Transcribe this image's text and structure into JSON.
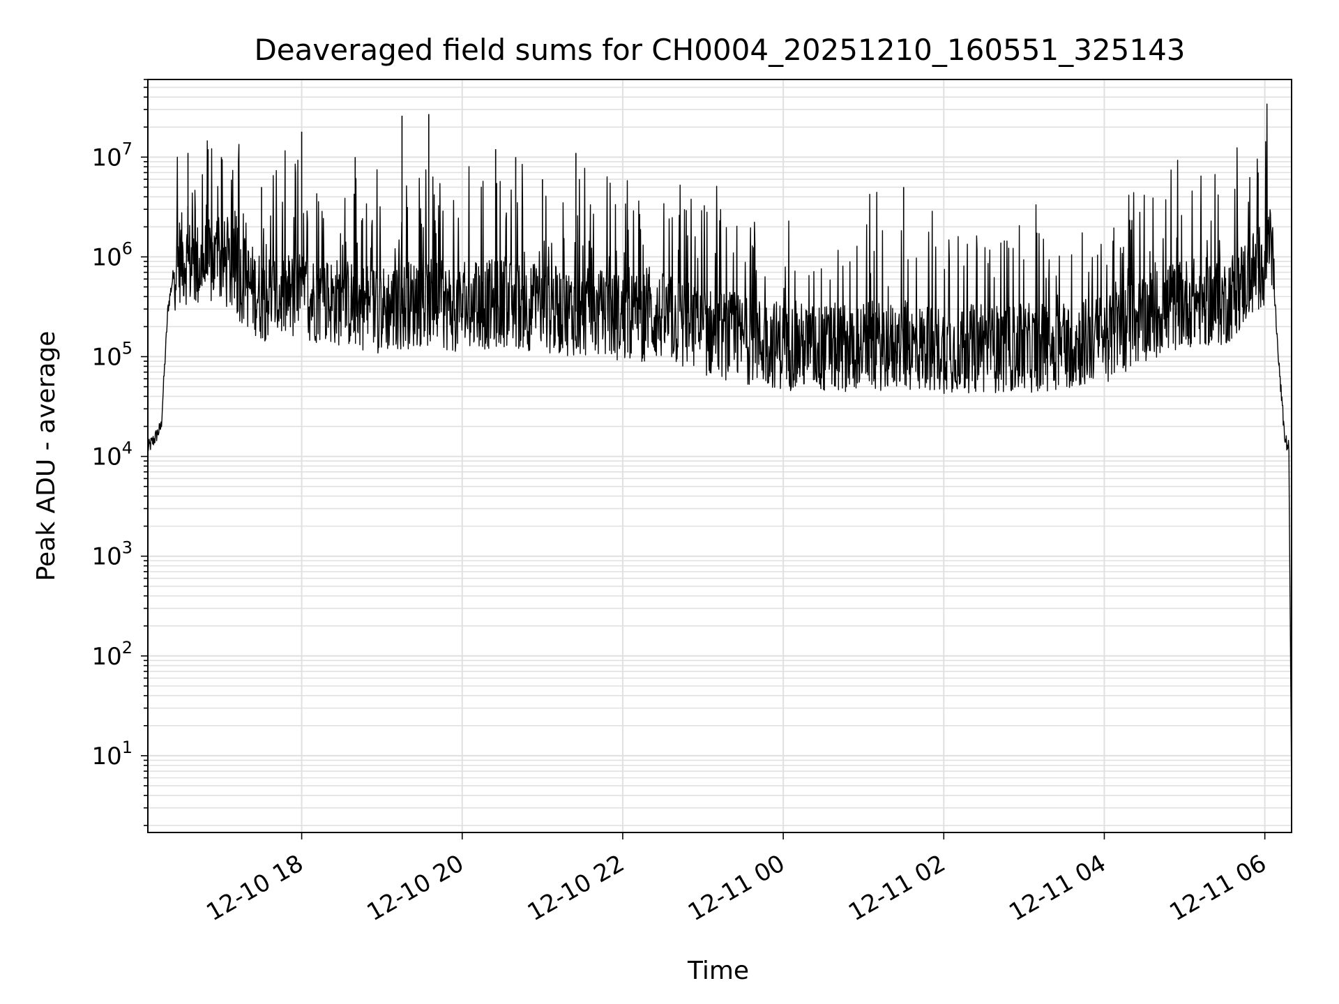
{
  "chart_data": {
    "type": "line",
    "title": "Deaveraged field sums for CH0004_20251210_160551_325143",
    "xlabel": "Time",
    "ylabel": "Peak ADU - average",
    "y_scale": "log",
    "ylim": [
      1.7,
      60000000
    ],
    "xlim": [
      "2025-12-10 16:05",
      "2025-12-11 06:20"
    ],
    "grid": true,
    "grid_minor": true,
    "line_color": "#000000",
    "x_ticks": [
      "12-10 18",
      "12-10 20",
      "12-10 22",
      "12-11 00",
      "12-11 02",
      "12-11 04",
      "12-11 06"
    ],
    "y_ticks": [
      {
        "value": 10,
        "base": "10",
        "exp": "1"
      },
      {
        "value": 100,
        "base": "10",
        "exp": "2"
      },
      {
        "value": 1000,
        "base": "10",
        "exp": "3"
      },
      {
        "value": 10000,
        "base": "10",
        "exp": "4"
      },
      {
        "value": 100000,
        "base": "10",
        "exp": "5"
      },
      {
        "value": 1000000,
        "base": "10",
        "exp": "6"
      },
      {
        "value": 10000000,
        "base": "10",
        "exp": "7"
      }
    ],
    "series": [
      {
        "x": [
          "2025-12-10 16:05",
          "2025-12-10 16:10",
          "2025-12-10 16:15",
          "2025-12-10 16:20",
          "2025-12-10 16:25",
          "2025-12-10 16:30",
          "2025-12-10 16:40",
          "2025-12-10 17:00",
          "2025-12-10 17:30",
          "2025-12-10 18:00",
          "2025-12-10 18:30",
          "2025-12-10 19:00",
          "2025-12-10 19:30",
          "2025-12-10 20:00",
          "2025-12-10 20:30",
          "2025-12-10 21:00",
          "2025-12-10 21:30",
          "2025-12-10 22:00",
          "2025-12-10 22:30",
          "2025-12-10 23:00",
          "2025-12-10 23:30",
          "2025-12-11 00:00",
          "2025-12-11 00:30",
          "2025-12-11 01:00",
          "2025-12-11 01:30",
          "2025-12-11 02:00",
          "2025-12-11 02:30",
          "2025-12-11 03:00",
          "2025-12-11 03:30",
          "2025-12-11 04:00",
          "2025-12-11 04:30",
          "2025-12-11 05:00",
          "2025-12-11 05:30",
          "2025-12-11 06:00",
          "2025-12-11 06:05",
          "2025-12-11 06:10",
          "2025-12-11 06:15",
          "2025-12-11 06:18",
          "2025-12-11 06:20"
        ],
        "y": [
          12000,
          15000,
          20000,
          300000,
          800000,
          1000000,
          800000,
          900000,
          400000,
          400000,
          350000,
          300000,
          350000,
          300000,
          350000,
          300000,
          280000,
          250000,
          250000,
          180000,
          150000,
          130000,
          120000,
          130000,
          125000,
          120000,
          120000,
          120000,
          130000,
          150000,
          250000,
          350000,
          350000,
          900000,
          1500000,
          100000,
          15000,
          12000,
          4
        ]
      }
    ],
    "spikes": [
      {
        "x": "2025-12-10 16:35",
        "y": 11000000
      },
      {
        "x": "2025-12-10 16:50",
        "y": 12000000
      },
      {
        "x": "2025-12-10 17:00",
        "y": 10000000
      },
      {
        "x": "2025-12-10 17:30",
        "y": 5000000
      },
      {
        "x": "2025-12-10 18:00",
        "y": 18000000
      },
      {
        "x": "2025-12-10 18:40",
        "y": 10000000
      },
      {
        "x": "2025-12-10 19:15",
        "y": 26000000
      },
      {
        "x": "2025-12-10 19:35",
        "y": 27000000
      },
      {
        "x": "2025-12-10 20:25",
        "y": 12000000
      },
      {
        "x": "2025-12-10 20:40",
        "y": 10000000
      },
      {
        "x": "2025-12-10 21:00",
        "y": 6000000
      },
      {
        "x": "2025-12-10 21:25",
        "y": 11000000
      },
      {
        "x": "2025-12-11 01:30",
        "y": 5000000
      },
      {
        "x": "2025-12-11 05:55",
        "y": 7000000
      }
    ]
  }
}
